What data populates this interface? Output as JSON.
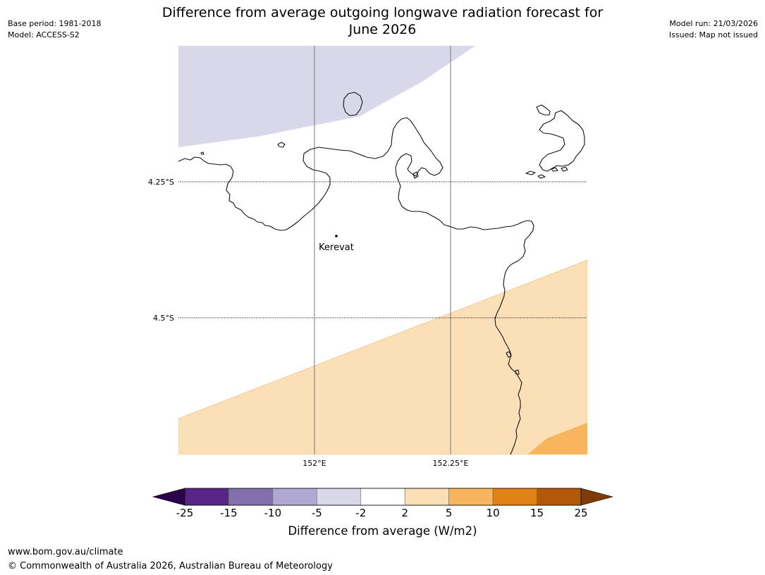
{
  "header": {
    "title_line1": "Difference from average outgoing longwave radiation forecast for",
    "title_line2": "June 2026",
    "base_period": "Base period: 1981-2018",
    "model": "Model: ACCESS-S2",
    "model_run": "Model run: 21/03/2026",
    "issued": "Issued: Map not issued"
  },
  "map": {
    "lat_labels": [
      "4.25°S",
      "4.5°S"
    ],
    "lon_labels": [
      "152°E",
      "152.25°E"
    ],
    "place": {
      "name": "Kerevat",
      "icon": "location-dot-icon"
    },
    "shading": {
      "top_left_band": "-5 to -2",
      "lower_band": "2 to 5",
      "bottom_right_corner": "5 to 10"
    }
  },
  "colorbar": {
    "title": "Difference from average (W/m2)",
    "ticks": [
      "-25",
      "-15",
      "-10",
      "-5",
      "-2",
      "2",
      "5",
      "10",
      "15",
      "25"
    ],
    "colors": [
      "#562585",
      "#8270ae",
      "#b0a8d0",
      "#d8d8ea",
      "#ffffff",
      "#fbdfb6",
      "#f7b55e",
      "#e08217",
      "#b35708"
    ],
    "extend_low_color": "#2d004b",
    "extend_high_color": "#7f3b08"
  },
  "footer": {
    "url": "www.bom.gov.au/climate",
    "copyright": "© Commonwealth of Australia 2026, Australian Bureau of Meteorology"
  }
}
